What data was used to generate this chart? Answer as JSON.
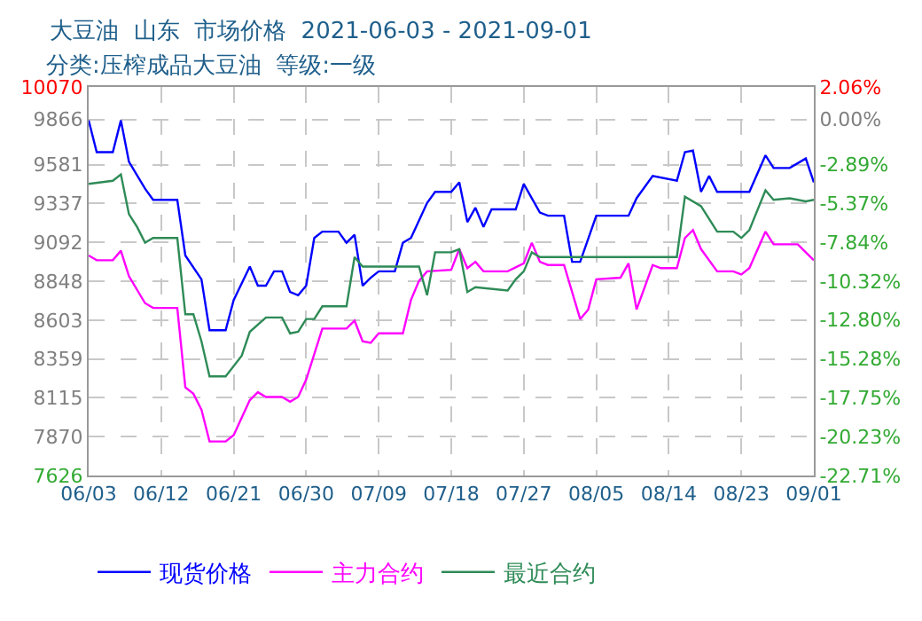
{
  "chart_data": {
    "type": "line",
    "title": "大豆油  山东  市场价格  2021-06-03 - 2021-09-01",
    "subtitle": "分类:压榨成品大豆油  等级:一级",
    "xlim": [
      "2021-06-03",
      "2021-09-01"
    ],
    "xticks": [
      {
        "value": "2021-06-03",
        "label": "06/03"
      },
      {
        "value": "2021-06-12",
        "label": "06/12"
      },
      {
        "value": "2021-06-21",
        "label": "06/21"
      },
      {
        "value": "2021-06-30",
        "label": "06/30"
      },
      {
        "value": "2021-07-09",
        "label": "07/09"
      },
      {
        "value": "2021-07-18",
        "label": "07/18"
      },
      {
        "value": "2021-07-27",
        "label": "07/27"
      },
      {
        "value": "2021-08-05",
        "label": "08/05"
      },
      {
        "value": "2021-08-14",
        "label": "08/14"
      },
      {
        "value": "2021-08-23",
        "label": "08/23"
      },
      {
        "value": "2021-09-01",
        "label": "09/01"
      }
    ],
    "ylim": [
      7626,
      10070
    ],
    "yticks": [
      10070,
      9866,
      9581,
      9337,
      9092,
      8848,
      8603,
      8359,
      8115,
      7870,
      7626
    ],
    "y2lim": [
      -22.71,
      2.06
    ],
    "y2ticks": [
      {
        "value": 2.06,
        "label": "2.06%"
      },
      {
        "value": 0,
        "label": "0.00%"
      },
      {
        "value": -2.89,
        "label": "-2.89%"
      },
      {
        "value": -5.37,
        "label": "-5.37%"
      },
      {
        "value": -7.84,
        "label": "-7.84%"
      },
      {
        "value": -10.32,
        "label": "-10.32%"
      },
      {
        "value": -12.8,
        "label": "-12.80%"
      },
      {
        "value": -15.28,
        "label": "-15.28%"
      },
      {
        "value": -17.75,
        "label": "-17.75%"
      },
      {
        "value": -20.23,
        "label": "-20.23%"
      },
      {
        "value": -22.71,
        "label": "-22.71%"
      }
    ],
    "grid": true,
    "legend": "bottom",
    "marker": "none",
    "line_style": "solid",
    "series": [
      {
        "name": "现货价格",
        "color": "#0000ff",
        "x": [
          "2021-06-03",
          "2021-06-04",
          "2021-06-06",
          "2021-06-07",
          "2021-06-08",
          "2021-06-10",
          "2021-06-11",
          "2021-06-14",
          "2021-06-15",
          "2021-06-17",
          "2021-06-18",
          "2021-06-20",
          "2021-06-21",
          "2021-06-23",
          "2021-06-24",
          "2021-06-25",
          "2021-06-26",
          "2021-06-27",
          "2021-06-28",
          "2021-06-29",
          "2021-06-30",
          "2021-07-01",
          "2021-07-02",
          "2021-07-04",
          "2021-07-05",
          "2021-07-06",
          "2021-07-07",
          "2021-07-08",
          "2021-07-09",
          "2021-07-11",
          "2021-07-12",
          "2021-07-13",
          "2021-07-15",
          "2021-07-16",
          "2021-07-18",
          "2021-07-19",
          "2021-07-20",
          "2021-07-21",
          "2021-07-22",
          "2021-07-23",
          "2021-07-26",
          "2021-07-27",
          "2021-07-29",
          "2021-07-30",
          "2021-08-01",
          "2021-08-02",
          "2021-08-03",
          "2021-08-05",
          "2021-08-09",
          "2021-08-10",
          "2021-08-12",
          "2021-08-15",
          "2021-08-16",
          "2021-08-17",
          "2021-08-18",
          "2021-08-19",
          "2021-08-20",
          "2021-08-24",
          "2021-08-26",
          "2021-08-27",
          "2021-08-29",
          "2021-08-31",
          "2021-09-01"
        ],
        "values": [
          9860,
          9660,
          9660,
          9860,
          9600,
          9430,
          9360,
          9360,
          9010,
          8860,
          8540,
          8540,
          8730,
          8940,
          8820,
          8820,
          8910,
          8910,
          8780,
          8760,
          8820,
          9120,
          9160,
          9160,
          9090,
          9140,
          8820,
          8870,
          8910,
          8910,
          9090,
          9120,
          9340,
          9410,
          9410,
          9470,
          9220,
          9310,
          9190,
          9300,
          9300,
          9460,
          9280,
          9260,
          9260,
          8970,
          8970,
          9260,
          9260,
          9370,
          9510,
          9480,
          9660,
          9670,
          9410,
          9510,
          9410,
          9410,
          9640,
          9560,
          9560,
          9620,
          9470
        ]
      },
      {
        "name": "主力合约",
        "color": "#ff00ff",
        "x": [
          "2021-06-03",
          "2021-06-04",
          "2021-06-06",
          "2021-06-07",
          "2021-06-08",
          "2021-06-10",
          "2021-06-11",
          "2021-06-14",
          "2021-06-15",
          "2021-06-16",
          "2021-06-17",
          "2021-06-18",
          "2021-06-20",
          "2021-06-21",
          "2021-06-23",
          "2021-06-24",
          "2021-06-25",
          "2021-06-27",
          "2021-06-28",
          "2021-06-29",
          "2021-06-30",
          "2021-07-02",
          "2021-07-05",
          "2021-07-06",
          "2021-07-07",
          "2021-07-08",
          "2021-07-09",
          "2021-07-12",
          "2021-07-13",
          "2021-07-14",
          "2021-07-15",
          "2021-07-18",
          "2021-07-19",
          "2021-07-20",
          "2021-07-21",
          "2021-07-22",
          "2021-07-25",
          "2021-07-27",
          "2021-07-28",
          "2021-07-29",
          "2021-07-30",
          "2021-08-01",
          "2021-08-03",
          "2021-08-04",
          "2021-08-05",
          "2021-08-08",
          "2021-08-09",
          "2021-08-10",
          "2021-08-12",
          "2021-08-13",
          "2021-08-15",
          "2021-08-16",
          "2021-08-17",
          "2021-08-18",
          "2021-08-20",
          "2021-08-22",
          "2021-08-23",
          "2021-08-24",
          "2021-08-26",
          "2021-08-27",
          "2021-08-30",
          "2021-09-01"
        ],
        "values": [
          9010,
          8980,
          8980,
          9040,
          8880,
          8710,
          8680,
          8680,
          8180,
          8140,
          8040,
          7840,
          7840,
          7880,
          8100,
          8150,
          8120,
          8120,
          8090,
          8120,
          8230,
          8550,
          8550,
          8600,
          8470,
          8460,
          8520,
          8520,
          8730,
          8850,
          8910,
          8920,
          9050,
          8930,
          8970,
          8910,
          8910,
          8960,
          9090,
          8970,
          8950,
          8950,
          8610,
          8670,
          8860,
          8870,
          8960,
          8670,
          8950,
          8930,
          8930,
          9120,
          9170,
          9050,
          8910,
          8910,
          8890,
          8930,
          9160,
          9080,
          9080,
          8980
        ]
      },
      {
        "name": "最近合约",
        "color": "#2e8b57",
        "x": [
          "2021-06-03",
          "2021-06-06",
          "2021-06-07",
          "2021-06-08",
          "2021-06-09",
          "2021-06-10",
          "2021-06-11",
          "2021-06-14",
          "2021-06-15",
          "2021-06-16",
          "2021-06-17",
          "2021-06-18",
          "2021-06-20",
          "2021-06-22",
          "2021-06-23",
          "2021-06-25",
          "2021-06-27",
          "2021-06-28",
          "2021-06-29",
          "2021-06-30",
          "2021-07-01",
          "2021-07-02",
          "2021-07-05",
          "2021-07-06",
          "2021-07-07",
          "2021-07-14",
          "2021-07-15",
          "2021-07-16",
          "2021-07-18",
          "2021-07-19",
          "2021-07-20",
          "2021-07-21",
          "2021-07-25",
          "2021-07-26",
          "2021-07-27",
          "2021-07-28",
          "2021-07-29",
          "2021-08-15",
          "2021-08-16",
          "2021-08-18",
          "2021-08-20",
          "2021-08-22",
          "2021-08-23",
          "2021-08-24",
          "2021-08-26",
          "2021-08-27",
          "2021-08-29",
          "2021-08-31",
          "2021-09-01"
        ],
        "values": [
          9460,
          9480,
          9520,
          9270,
          9190,
          9090,
          9120,
          9120,
          8640,
          8640,
          8470,
          8250,
          8250,
          8380,
          8530,
          8620,
          8620,
          8520,
          8530,
          8610,
          8610,
          8690,
          8690,
          9000,
          8940,
          8940,
          8760,
          9030,
          9030,
          9050,
          8780,
          8810,
          8790,
          8860,
          8910,
          9030,
          9000,
          9000,
          9380,
          9320,
          9160,
          9160,
          9120,
          9170,
          9420,
          9360,
          9370,
          9350,
          9360
        ]
      }
    ]
  }
}
